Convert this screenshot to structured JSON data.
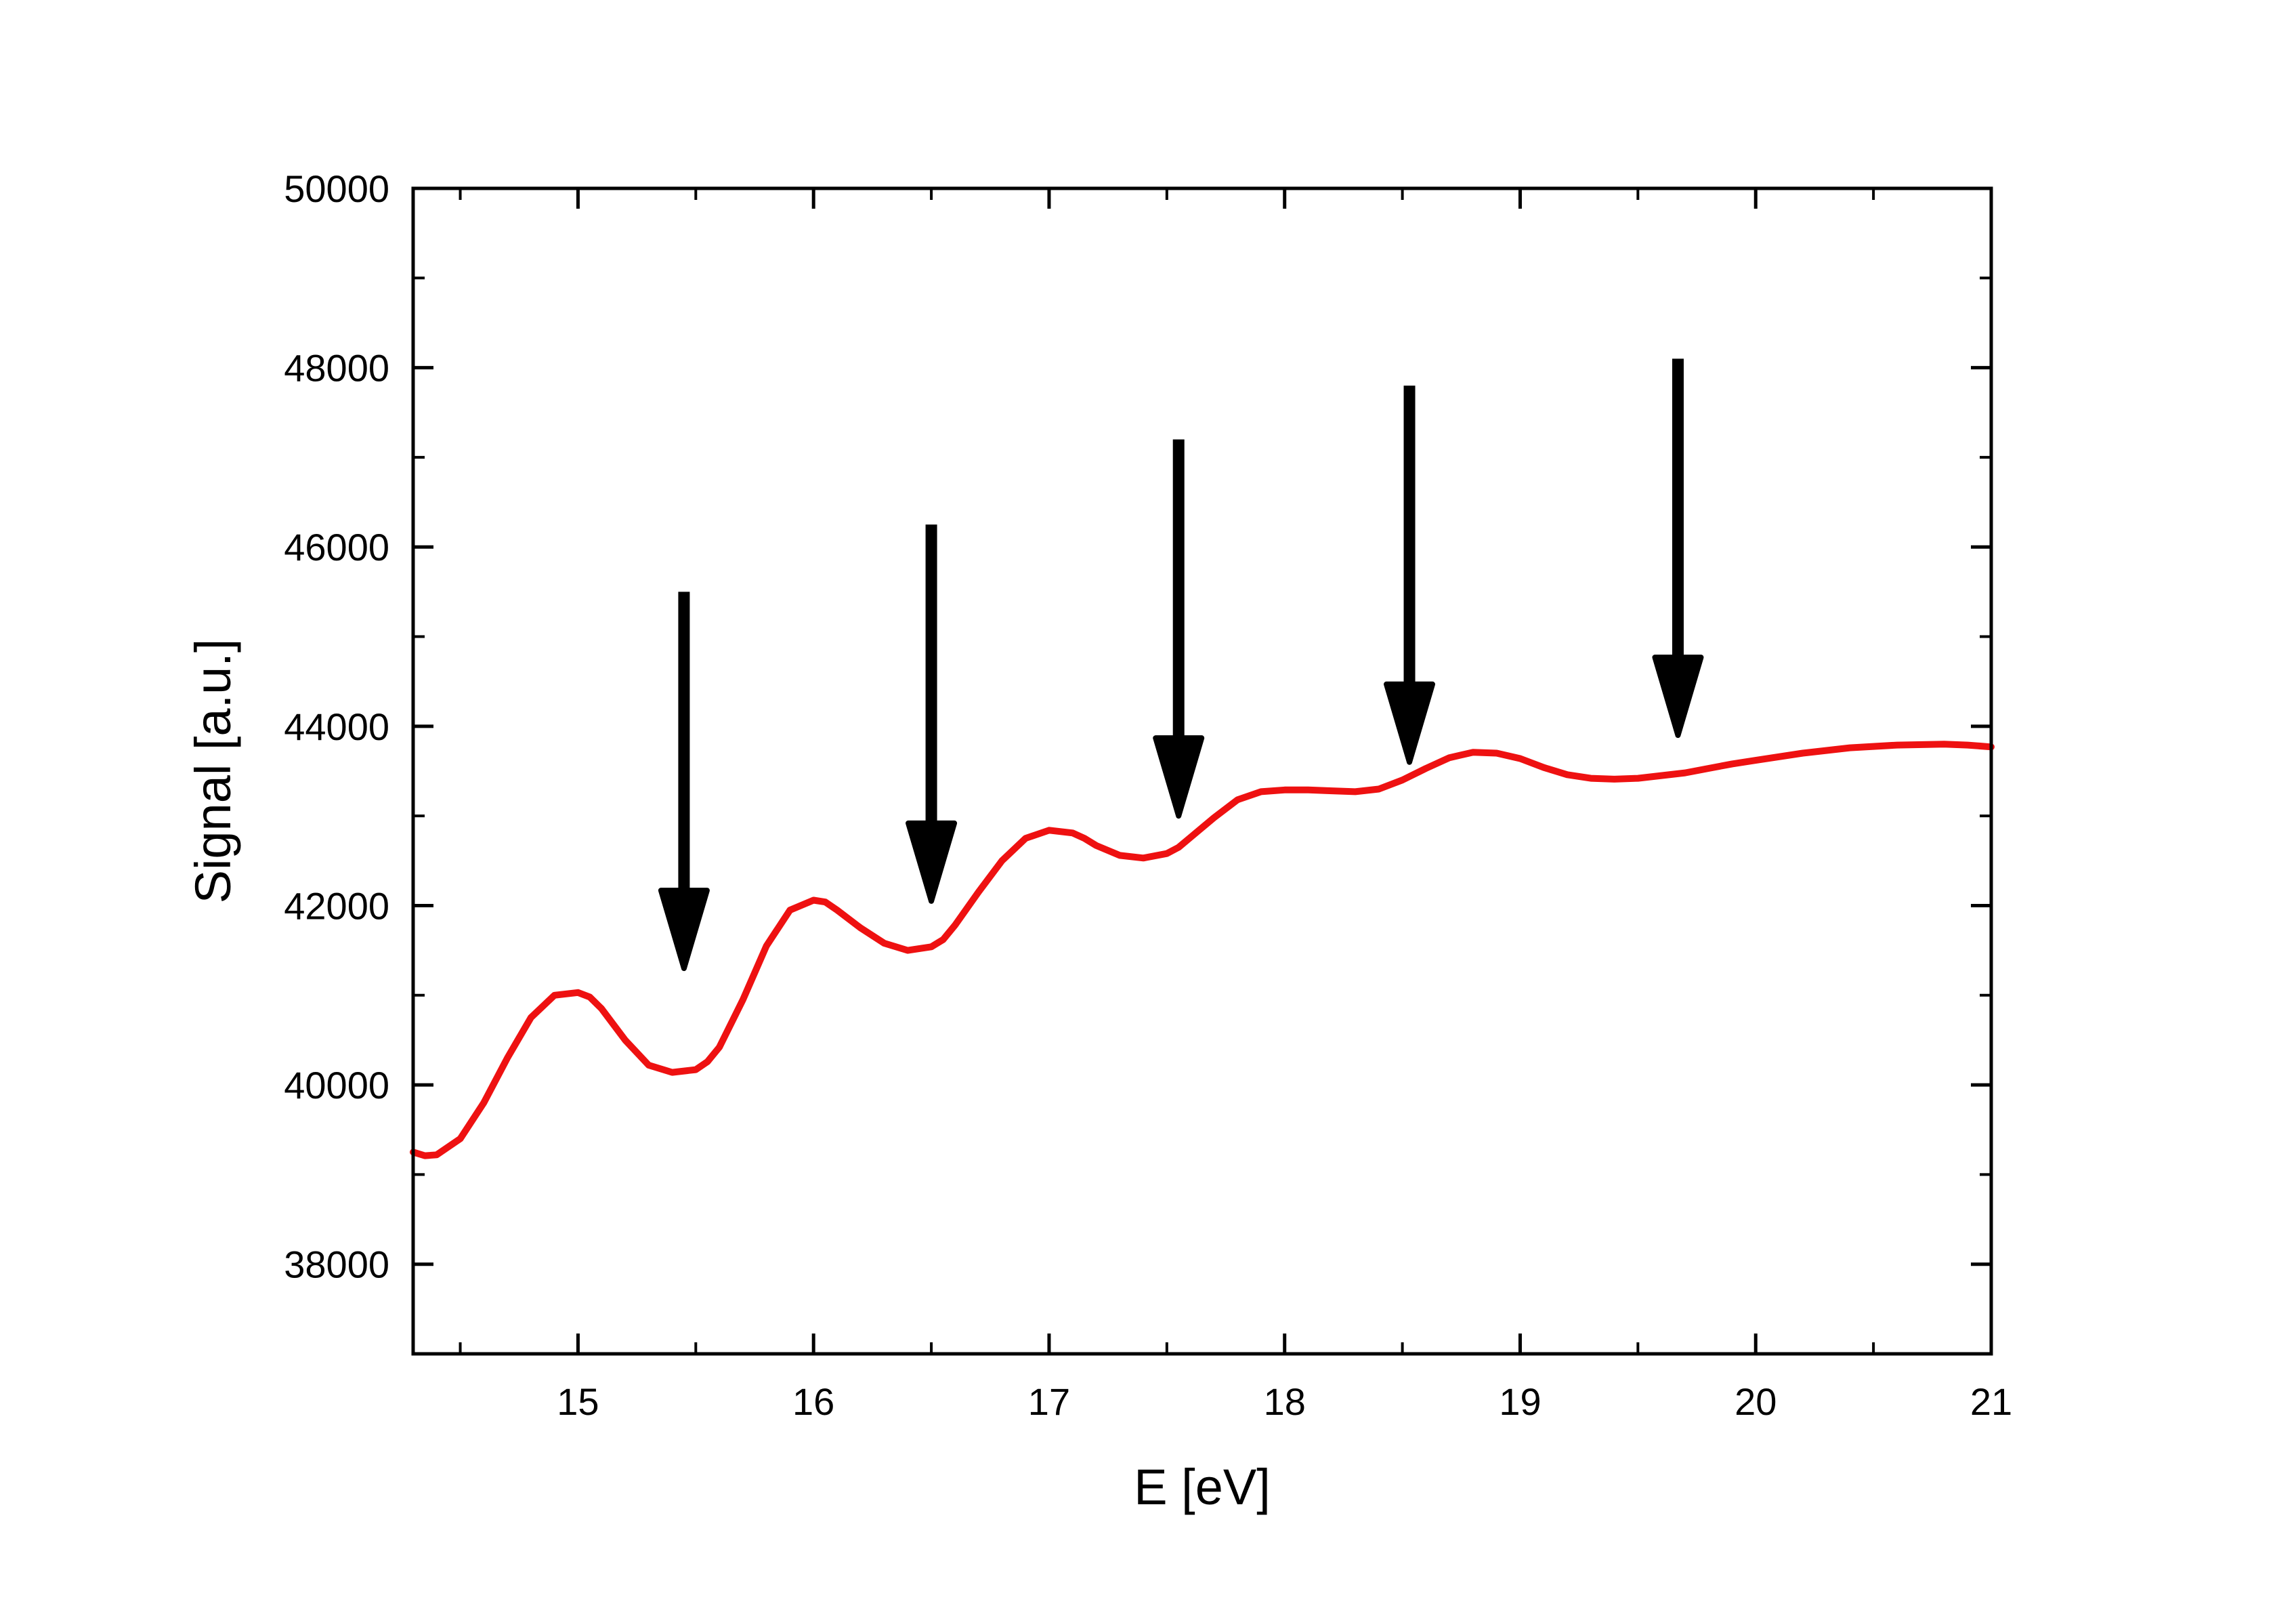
{
  "chart_data": {
    "type": "line",
    "xlabel": "E [eV]",
    "ylabel": "Signal [a.u.]",
    "xlim": [
      14.3,
      21
    ],
    "ylim": [
      37000,
      50000
    ],
    "x_ticks": [
      "15",
      "16",
      "17",
      "18",
      "19",
      "20",
      "21"
    ],
    "y_ticks": [
      "38000",
      "40000",
      "42000",
      "44000",
      "46000",
      "48000",
      "50000"
    ],
    "grid": false,
    "legend": "none",
    "colors": {
      "line": "#ee1111",
      "arrows": "#000000",
      "axes": "#000000"
    },
    "series": [
      {
        "x": [
          14.3,
          14.35,
          14.4,
          14.5,
          14.6,
          14.7,
          14.8,
          14.9,
          15.0,
          15.05,
          15.1,
          15.2,
          15.3,
          15.4,
          15.5,
          15.55,
          15.6,
          15.7,
          15.8,
          15.9,
          16.0,
          16.05,
          16.1,
          16.2,
          16.3,
          16.4,
          16.5,
          16.55,
          16.6,
          16.7,
          16.8,
          16.9,
          17.0,
          17.1,
          17.15,
          17.2,
          17.3,
          17.4,
          17.5,
          17.55,
          17.6,
          17.7,
          17.8,
          17.9,
          18.0,
          18.1,
          18.2,
          18.3,
          18.4,
          18.5,
          18.6,
          18.7,
          18.8,
          18.9,
          19.0,
          19.1,
          19.2,
          19.3,
          19.4,
          19.5,
          19.6,
          19.7,
          19.8,
          19.9,
          20.0,
          20.2,
          20.4,
          20.6,
          20.8,
          20.9,
          21.0
        ],
        "y": [
          39250,
          39210,
          39220,
          39400,
          39800,
          40300,
          40750,
          41000,
          41030,
          40980,
          40850,
          40500,
          40220,
          40140,
          40170,
          40260,
          40420,
          40950,
          41550,
          41950,
          42060,
          42040,
          41950,
          41750,
          41580,
          41500,
          41540,
          41620,
          41780,
          42150,
          42500,
          42750,
          42840,
          42810,
          42750,
          42670,
          42560,
          42530,
          42580,
          42650,
          42760,
          42980,
          43180,
          43270,
          43290,
          43290,
          43280,
          43270,
          43300,
          43400,
          43530,
          43650,
          43710,
          43700,
          43640,
          43540,
          43460,
          43420,
          43410,
          43420,
          43450,
          43480,
          43530,
          43580,
          43620,
          43700,
          43760,
          43790,
          43800,
          43790,
          43770
        ]
      }
    ],
    "annotations": [
      {
        "type": "arrow",
        "x": 15.45,
        "y_start": 45500,
        "y_end": 41300
      },
      {
        "type": "arrow",
        "x": 16.5,
        "y_start": 46250,
        "y_end": 42050
      },
      {
        "type": "arrow",
        "x": 17.55,
        "y_start": 47200,
        "y_end": 43000
      },
      {
        "type": "arrow",
        "x": 18.53,
        "y_start": 47800,
        "y_end": 43600
      },
      {
        "type": "arrow",
        "x": 19.67,
        "y_start": 48100,
        "y_end": 43900
      }
    ]
  }
}
